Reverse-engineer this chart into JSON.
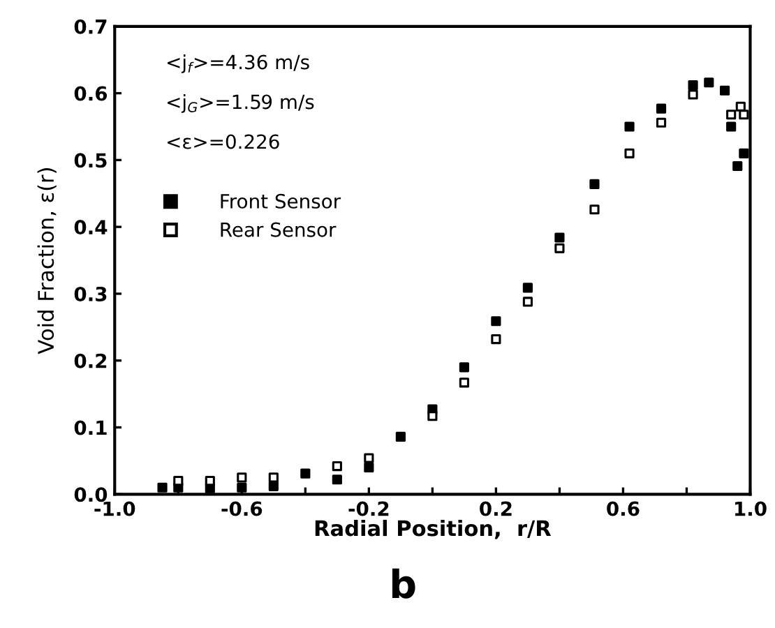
{
  "chart_data": {
    "type": "scatter",
    "xlabel": "Radial Position,  r/R",
    "ylabel": "Void Fraction, ε(r)",
    "annotations": [
      "<j$_{f}$>=4.36 m/s",
      "<j$_{G}$>=1.59 m/s",
      "<ε>=0.226",
      "b"
    ],
    "series": [
      {
        "name": "Front Sensor",
        "color": "#000000",
        "x": [
          -0.85,
          -0.8,
          -0.7,
          -0.6,
          -0.5,
          -0.4,
          -0.3,
          -0.2,
          -0.1,
          0.0,
          0.1,
          0.2,
          0.3,
          0.4,
          0.51,
          0.62,
          0.72,
          0.82,
          0.87,
          0.92,
          0.94,
          0.96,
          0.98
        ],
        "values": [
          0.01,
          0.01,
          0.009,
          0.01,
          0.012,
          0.031,
          0.022,
          0.04,
          0.086,
          0.127,
          0.19,
          0.259,
          0.309,
          0.384,
          0.464,
          0.55,
          0.577,
          0.612,
          0.616,
          0.604,
          0.55,
          0.491,
          0.51
        ]
      },
      {
        "name": "Rear Sensor",
        "color": "#ffffff",
        "x": [
          -0.8,
          -0.7,
          -0.6,
          -0.5,
          -0.3,
          -0.2,
          0.0,
          0.1,
          0.2,
          0.3,
          0.4,
          0.51,
          0.62,
          0.72,
          0.82,
          0.94,
          0.97,
          0.98
        ],
        "values": [
          0.02,
          0.02,
          0.025,
          0.025,
          0.042,
          0.054,
          0.117,
          0.167,
          0.232,
          0.288,
          0.368,
          0.426,
          0.51,
          0.556,
          0.598,
          0.568,
          0.58,
          0.568
        ]
      }
    ],
    "xlim": [
      -1.0,
      1.0
    ],
    "ylim": [
      0.0,
      0.7
    ],
    "xticks": [
      {
        "value": -1.0,
        "label": "-1.0"
      },
      {
        "value": -0.8,
        "label": null
      },
      {
        "value": -0.6,
        "label": "-0.6"
      },
      {
        "value": -0.4,
        "label": null
      },
      {
        "value": -0.2,
        "label": "-0.2"
      },
      {
        "value": 0.0,
        "label": null
      },
      {
        "value": 0.2,
        "label": "0.2"
      },
      {
        "value": 0.4,
        "label": null
      },
      {
        "value": 0.6,
        "label": "0.6"
      },
      {
        "value": 0.8,
        "label": null
      },
      {
        "value": 1.0,
        "label": "1.0"
      }
    ],
    "yticks": [
      {
        "value": 0.0,
        "label": "0.0"
      },
      {
        "value": 0.1,
        "label": "0.1"
      },
      {
        "value": 0.2,
        "label": "0.2"
      },
      {
        "value": 0.3,
        "label": "0.3"
      },
      {
        "value": 0.4,
        "label": "0.4"
      },
      {
        "value": 0.5,
        "label": "0.5"
      },
      {
        "value": 0.6,
        "label": "0.6"
      },
      {
        "value": 0.7,
        "label": "0.7"
      }
    ],
    "marker": "square",
    "legend": "top left",
    "grid": false
  }
}
